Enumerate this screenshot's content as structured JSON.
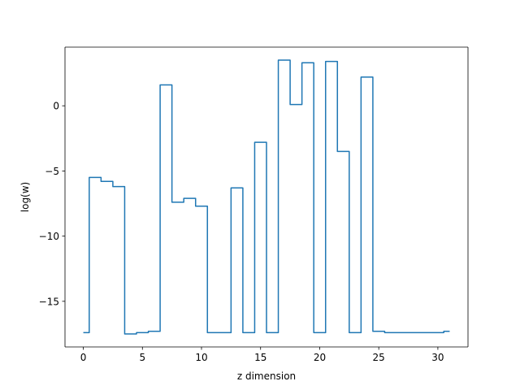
{
  "chart_data": {
    "type": "line",
    "drawstyle": "steps-mid",
    "xlabel": "z dimension",
    "ylabel": "log(w)",
    "xlim": [
      -1.55,
      32.55
    ],
    "ylim": [
      -18.5,
      4.5
    ],
    "xticks": [
      0,
      5,
      10,
      15,
      20,
      25,
      30
    ],
    "yticks": [
      -15,
      -10,
      -5,
      0
    ],
    "grid": false,
    "series": [
      {
        "color": "#1f77b4",
        "x": [
          0,
          1,
          2,
          3,
          4,
          5,
          6,
          7,
          8,
          9,
          10,
          11,
          12,
          13,
          14,
          15,
          16,
          17,
          18,
          19,
          20,
          21,
          22,
          23,
          24,
          25,
          26,
          27,
          28,
          29,
          30,
          31
        ],
        "y": [
          -17.4,
          -5.5,
          -5.8,
          -6.2,
          -17.5,
          -17.4,
          -17.3,
          1.6,
          -7.4,
          -7.1,
          -7.7,
          -17.4,
          -17.4,
          -6.3,
          -17.4,
          -2.8,
          -17.4,
          3.5,
          0.1,
          3.3,
          -17.4,
          3.4,
          -3.5,
          -17.4,
          2.2,
          -17.3,
          -17.4,
          -17.4,
          -17.4,
          -17.4,
          -17.4,
          -17.3
        ]
      }
    ]
  }
}
